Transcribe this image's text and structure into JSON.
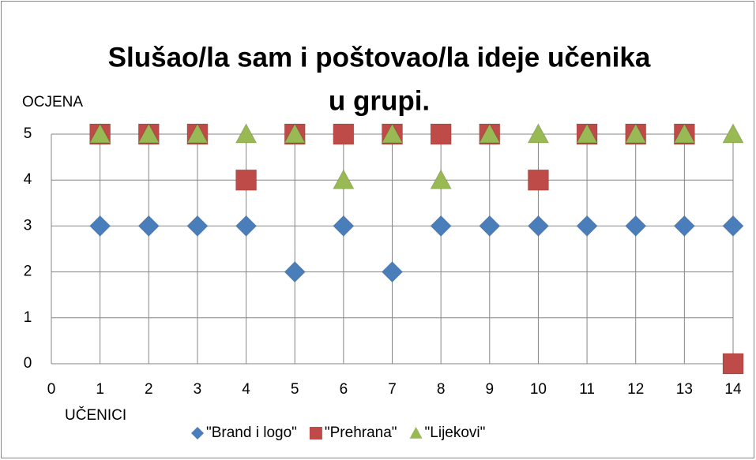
{
  "chart_data": {
    "type": "scatter",
    "title": [
      "Slušao/la sam i poštovao/la ideje učenika",
      "u grupi."
    ],
    "ylabel": "OCJENA",
    "xlabel": "UČENICI",
    "x": [
      1,
      2,
      3,
      4,
      5,
      6,
      7,
      8,
      9,
      10,
      11,
      12,
      13,
      14
    ],
    "series": [
      {
        "name": "\"Brand i logo\"",
        "color": "#4a7ebb",
        "marker": "diamond",
        "values": [
          3,
          3,
          3,
          3,
          2,
          3,
          2,
          3,
          3,
          3,
          3,
          3,
          3,
          3
        ]
      },
      {
        "name": "\"Prehrana\"",
        "color": "#be4b48",
        "marker": "square",
        "values": [
          5,
          5,
          5,
          4,
          5,
          5,
          5,
          5,
          5,
          4,
          5,
          5,
          5,
          0
        ]
      },
      {
        "name": "\"Lijekovi\"",
        "color": "#98b954",
        "marker": "triangle",
        "values": [
          5,
          5,
          5,
          5,
          5,
          4,
          5,
          4,
          5,
          5,
          5,
          5,
          5,
          5
        ]
      }
    ],
    "xlim": [
      0,
      14
    ],
    "xticks": [
      0,
      1,
      2,
      3,
      4,
      5,
      6,
      7,
      8,
      9,
      10,
      11,
      12,
      13,
      14
    ],
    "ylim": [
      0,
      5
    ],
    "yticks": [
      0,
      1,
      2,
      3,
      4,
      5
    ],
    "grid": true,
    "legend": "bottom"
  }
}
